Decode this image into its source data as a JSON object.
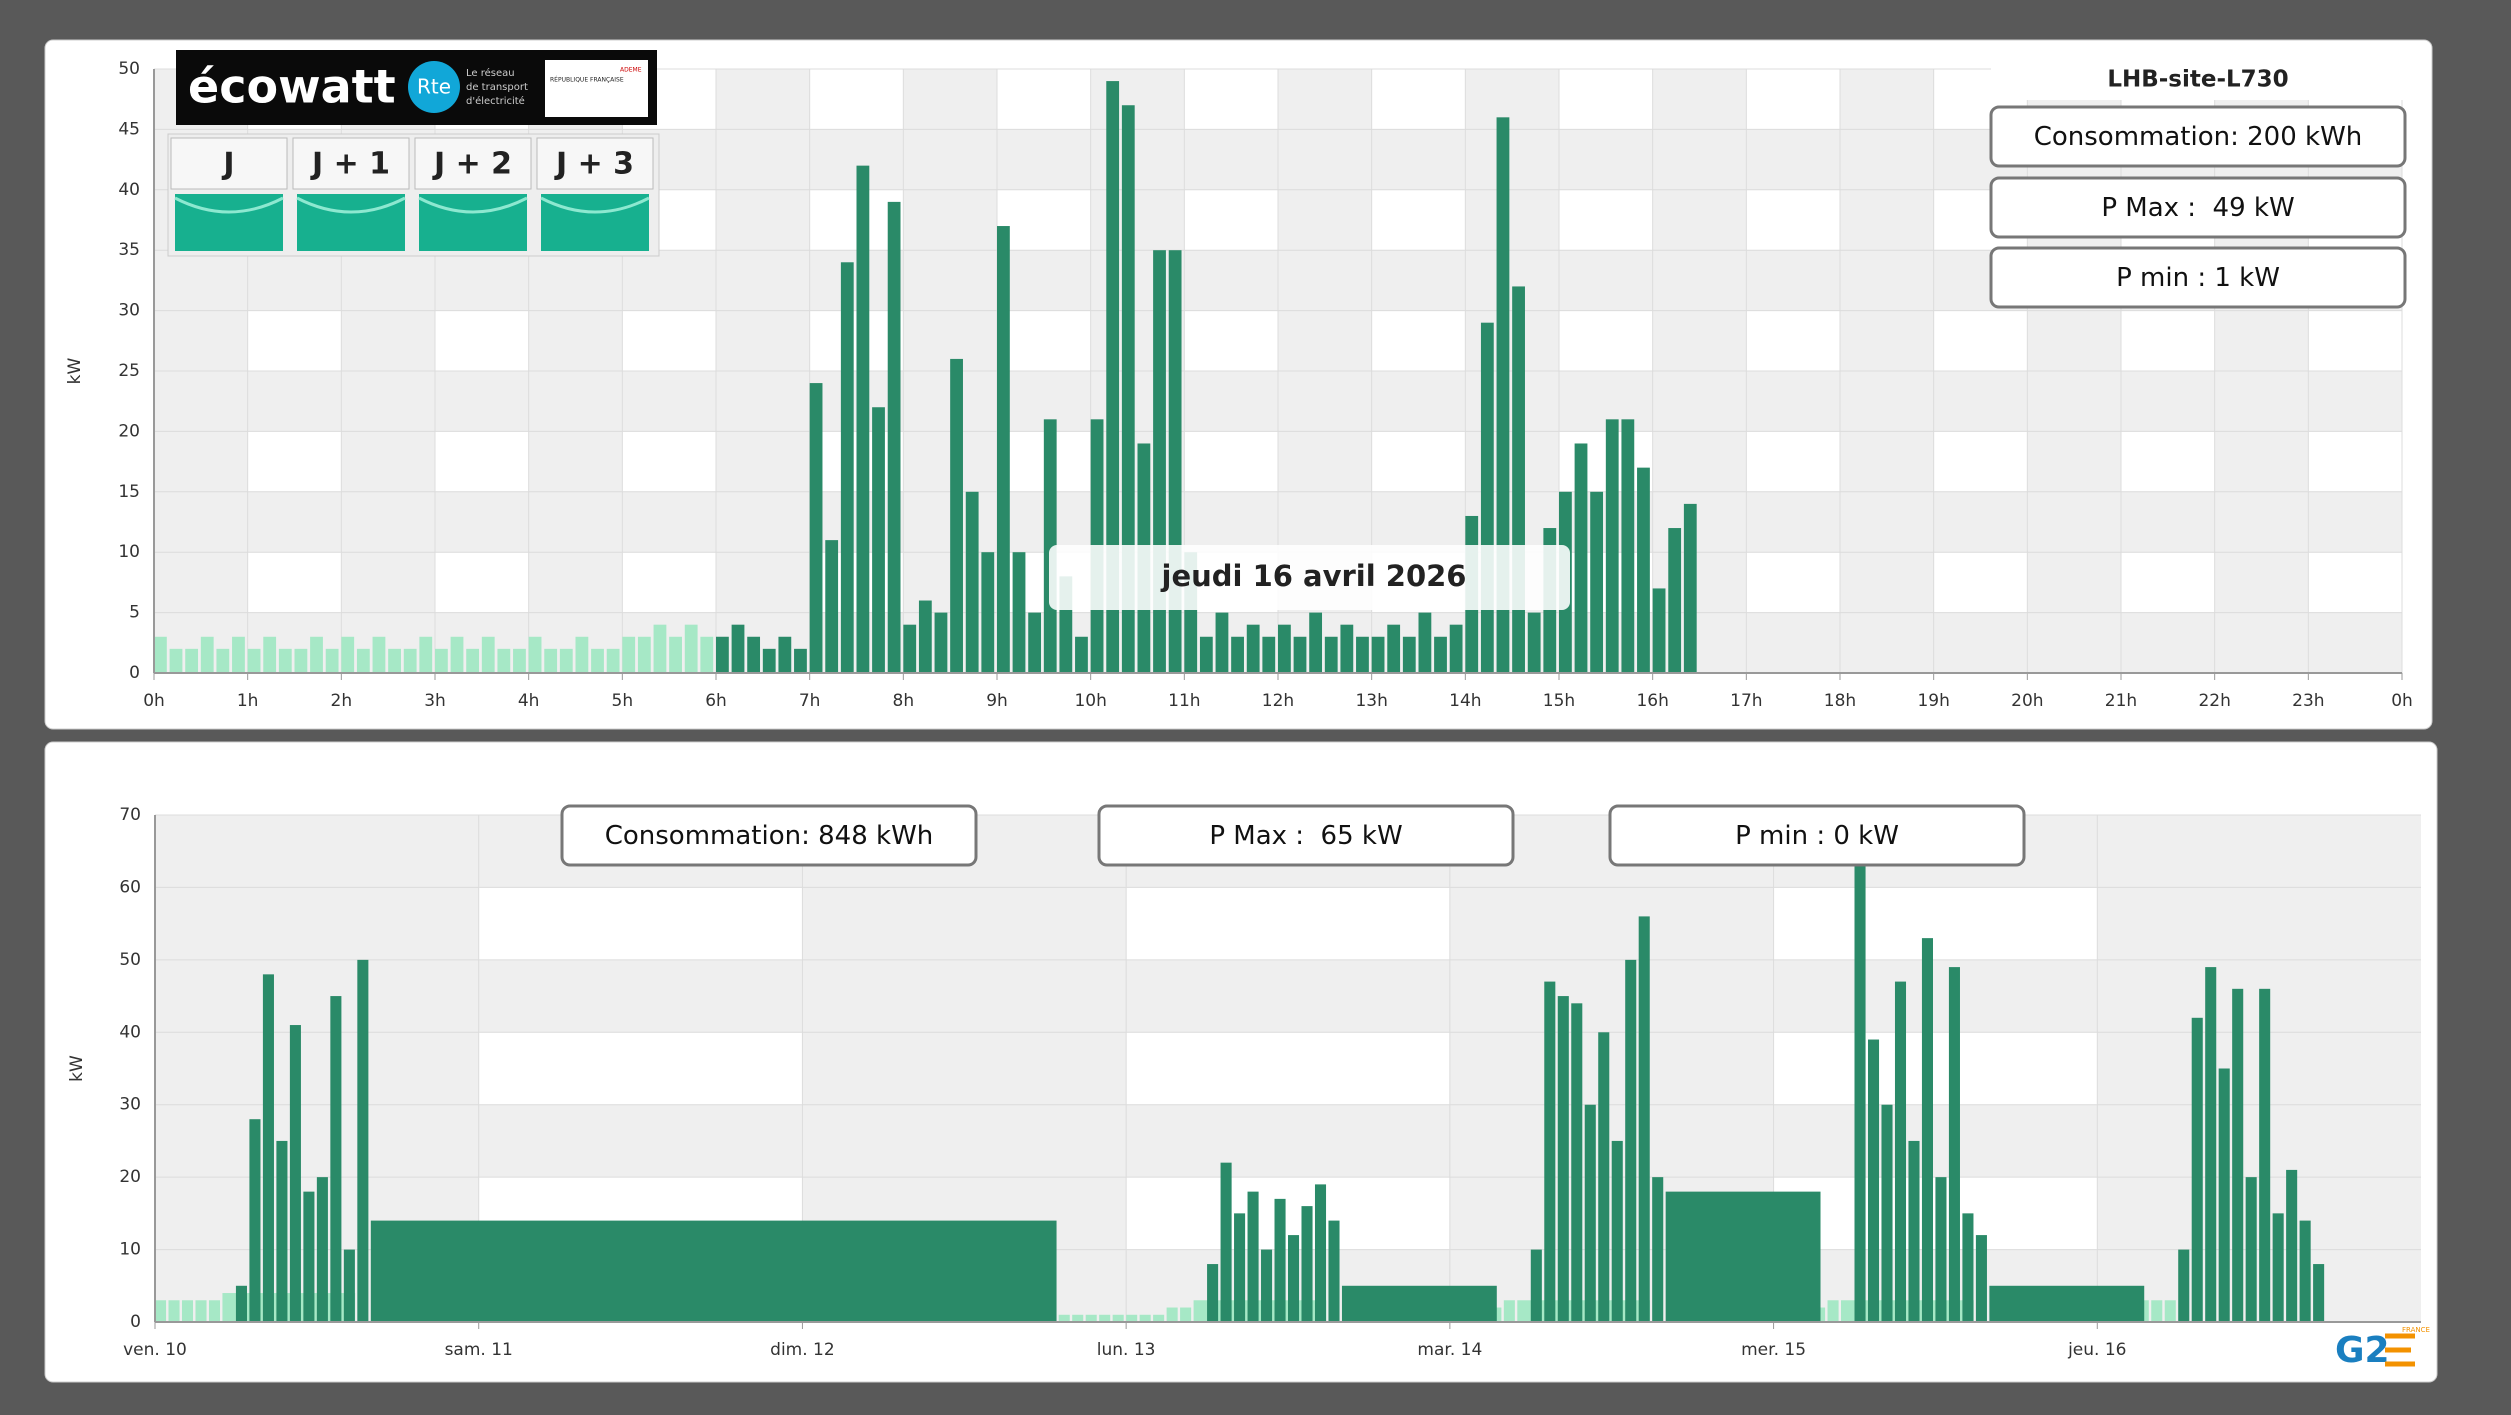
{
  "ecowatt": {
    "brand": "écowatt",
    "rte": "Rte",
    "rte_text": [
      "Le réseau",
      "de transport",
      "d'électricité"
    ],
    "republique": "RÉPUBLIQUE FRANÇAISE",
    "ademe": "ADEME",
    "days": [
      "J",
      "J + 1",
      "J + 2",
      "J + 3"
    ]
  },
  "logo": {
    "text": "G2",
    "country": "FRANCE"
  },
  "chart_data": [
    {
      "type": "bar",
      "title": "LHB-site-L730",
      "date_label": "jeudi 16 avril 2026",
      "ylabel": "kW",
      "stats": [
        "Consommation: 200 kWh",
        "P Max :  49 kW",
        "P min : 1 kW"
      ],
      "xlim": [
        0,
        1440
      ],
      "xticks": [
        {
          "value": 0,
          "label": "0h"
        },
        {
          "value": 60,
          "label": "1h"
        },
        {
          "value": 120,
          "label": "2h"
        },
        {
          "value": 180,
          "label": "3h"
        },
        {
          "value": 240,
          "label": "4h"
        },
        {
          "value": 300,
          "label": "5h"
        },
        {
          "value": 360,
          "label": "6h"
        },
        {
          "value": 420,
          "label": "7h"
        },
        {
          "value": 480,
          "label": "8h"
        },
        {
          "value": 540,
          "label": "9h"
        },
        {
          "value": 600,
          "label": "10h"
        },
        {
          "value": 660,
          "label": "11h"
        },
        {
          "value": 720,
          "label": "12h"
        },
        {
          "value": 780,
          "label": "13h"
        },
        {
          "value": 840,
          "label": "14h"
        },
        {
          "value": 900,
          "label": "15h"
        },
        {
          "value": 960,
          "label": "16h"
        },
        {
          "value": 1020,
          "label": "17h"
        },
        {
          "value": 1080,
          "label": "18h"
        },
        {
          "value": 1140,
          "label": "19h"
        },
        {
          "value": 1200,
          "label": "20h"
        },
        {
          "value": 1260,
          "label": "21h"
        },
        {
          "value": 1320,
          "label": "22h"
        },
        {
          "value": 1380,
          "label": "23h"
        },
        {
          "value": 1440,
          "label": "0h"
        }
      ],
      "ylim": [
        0,
        50
      ],
      "yticks": [
        0,
        5,
        10,
        15,
        20,
        25,
        30,
        35,
        40,
        45,
        50
      ],
      "grid": true,
      "series": [
        {
          "color": "#a6e8c6",
          "x": [
            0,
            10,
            20,
            30,
            40,
            50,
            60,
            70,
            80,
            90,
            100,
            110,
            120,
            130,
            140,
            150,
            160,
            170,
            180,
            190,
            200,
            210,
            220,
            230,
            240,
            250,
            260,
            270,
            280,
            290,
            300,
            310,
            320,
            330,
            340,
            350
          ],
          "values": [
            3,
            2,
            2,
            3,
            2,
            3,
            2,
            3,
            2,
            2,
            3,
            2,
            3,
            2,
            3,
            2,
            2,
            3,
            2,
            3,
            2,
            3,
            2,
            2,
            3,
            2,
            2,
            3,
            2,
            2,
            3,
            3,
            4,
            3,
            4,
            3
          ]
        },
        {
          "color": "#2a8a68",
          "x": [
            360,
            370,
            380,
            390,
            400,
            410,
            420,
            430,
            440,
            450,
            460,
            470,
            480,
            490,
            500,
            510,
            520,
            530,
            540,
            550,
            560,
            570,
            580,
            590,
            600,
            610,
            620,
            630,
            640,
            650,
            660,
            670,
            680,
            690,
            700,
            710,
            720,
            730,
            740,
            750,
            760,
            770,
            780,
            790,
            800,
            810,
            820,
            830,
            840,
            850,
            860,
            870,
            880,
            890,
            900,
            910,
            920,
            930,
            940,
            950,
            960,
            970,
            980
          ],
          "values": [
            3,
            4,
            3,
            2,
            3,
            2,
            24,
            11,
            34,
            42,
            22,
            39,
            4,
            6,
            5,
            26,
            15,
            10,
            37,
            10,
            5,
            21,
            8,
            3,
            21,
            49,
            47,
            19,
            35,
            35,
            10,
            3,
            5,
            3,
            4,
            3,
            4,
            3,
            5,
            3,
            4,
            3,
            3,
            4,
            3,
            5,
            3,
            4,
            13,
            29,
            46,
            32,
            5,
            12,
            15,
            19,
            15,
            21,
            21,
            17,
            7,
            12,
            14
          ]
        }
      ]
    },
    {
      "type": "bar",
      "ylabel": "kW",
      "stats": [
        "Consommation: 848 kWh",
        "P Max :  65 kW",
        "P min : 0 kW"
      ],
      "xlim": [
        0,
        168
      ],
      "xticks": [
        {
          "value": 0,
          "label": "ven. 10"
        },
        {
          "value": 24,
          "label": "sam. 11"
        },
        {
          "value": 48,
          "label": "dim. 12"
        },
        {
          "value": 72,
          "label": "lun. 13"
        },
        {
          "value": 96,
          "label": "mar. 14"
        },
        {
          "value": 120,
          "label": "mer. 15"
        },
        {
          "value": 144,
          "label": "jeu. 16"
        }
      ],
      "ylim": [
        0,
        70
      ],
      "yticks": [
        0,
        10,
        20,
        30,
        40,
        50,
        60,
        70
      ],
      "grid": true,
      "series": [
        {
          "color": "#a6e8c6",
          "x": [
            0,
            1,
            2,
            3,
            4,
            5,
            17,
            18,
            19,
            20,
            21,
            22,
            23,
            24,
            25,
            26,
            27,
            28,
            29,
            30,
            31,
            32,
            33,
            34,
            35,
            36,
            37,
            38,
            39,
            40,
            41,
            42,
            43,
            44,
            45,
            46,
            47,
            48,
            49,
            50,
            51,
            52,
            53,
            54,
            55,
            56,
            57,
            58,
            59,
            60,
            61,
            62,
            63,
            64,
            65,
            66,
            67,
            68,
            69,
            70,
            71,
            72,
            73,
            74,
            75,
            76,
            77,
            89,
            90,
            91,
            92,
            93,
            94,
            95,
            96,
            97,
            98,
            99,
            100,
            101,
            113,
            114,
            115,
            116,
            117,
            118,
            119,
            120,
            121,
            122,
            123,
            124,
            125,
            137,
            138,
            139,
            140,
            141,
            142,
            143,
            144,
            145,
            146,
            147,
            148,
            149
          ],
          "values": [
            3,
            3,
            3,
            3,
            3,
            4,
            2,
            1,
            1,
            1,
            1,
            1,
            1,
            1,
            1,
            1,
            1,
            1,
            1,
            1,
            1,
            1,
            1,
            1,
            1,
            1,
            1,
            1,
            1,
            1,
            1,
            1,
            1,
            1,
            1,
            1,
            1,
            1,
            1,
            1,
            1,
            1,
            1,
            1,
            1,
            2,
            1,
            1,
            1,
            1,
            1,
            1,
            1,
            1,
            1,
            1,
            1,
            1,
            1,
            1,
            1,
            1,
            1,
            1,
            2,
            2,
            3,
            3,
            2,
            2,
            1,
            1,
            1,
            1,
            1,
            1,
            1,
            2,
            3,
            3,
            2,
            1,
            1,
            1,
            1,
            1,
            1,
            1,
            1,
            1,
            2,
            3,
            3,
            2,
            2,
            1,
            1,
            1,
            2,
            3,
            3,
            3,
            3,
            3,
            3,
            3
          ]
        },
        {
          "color": "#2a8a68",
          "x": [
            6,
            7,
            8,
            9,
            10,
            11,
            12,
            13,
            14,
            15,
            16,
            78,
            79,
            80,
            81,
            82,
            83,
            84,
            85,
            86,
            87,
            88,
            102,
            103,
            104,
            105,
            106,
            107,
            108,
            109,
            110,
            111,
            112,
            126,
            127,
            128,
            129,
            130,
            131,
            132,
            133,
            134,
            135,
            136,
            150,
            151,
            152,
            153,
            154,
            155,
            156,
            157,
            158,
            159,
            160
          ],
          "values": [
            5,
            28,
            48,
            25,
            41,
            18,
            20,
            45,
            10,
            50,
            14,
            8,
            22,
            15,
            18,
            10,
            17,
            12,
            16,
            19,
            14,
            5,
            10,
            47,
            45,
            44,
            30,
            40,
            25,
            50,
            56,
            20,
            18,
            63,
            39,
            30,
            47,
            25,
            53,
            20,
            49,
            15,
            12,
            5,
            10,
            42,
            49,
            35,
            46,
            20,
            46,
            15,
            21,
            14,
            8
          ]
        }
      ]
    }
  ]
}
